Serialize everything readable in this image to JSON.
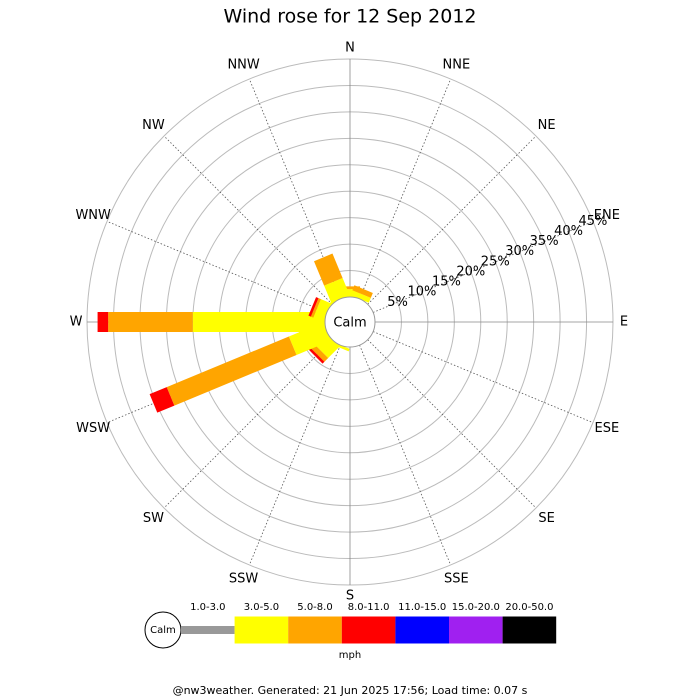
{
  "chart_data": {
    "type": "windrose",
    "title": "Wind rose for 12 Sep 2012",
    "categories": [
      "N",
      "NNE",
      "NE",
      "ENE",
      "E",
      "ESE",
      "SE",
      "SSE",
      "S",
      "SSW",
      "SW",
      "WSW",
      "W",
      "WNW",
      "NW",
      "NNW"
    ],
    "calm_label": "Calm",
    "series": [
      {
        "name": "1.0-3.0",
        "color": "#999999",
        "values": [
          0,
          0,
          0,
          0,
          0,
          0,
          0,
          0,
          0,
          0,
          0,
          0,
          0,
          0,
          0,
          0
        ]
      },
      {
        "name": "3.0-5.0",
        "color": "#ffff00",
        "values": [
          1.5,
          1,
          0,
          0,
          0,
          0,
          0,
          0,
          0,
          0.5,
          3,
          7,
          25,
          2,
          0.5,
          3.5
        ]
      },
      {
        "name": "5.0-8.0",
        "color": "#ffa500",
        "values": [
          0.5,
          1,
          0,
          0,
          0,
          0,
          0,
          0,
          0,
          0,
          1,
          25,
          16,
          0.5,
          0,
          5
        ]
      },
      {
        "name": "8.0-11.0",
        "color": "#ff0000",
        "values": [
          0,
          0,
          0,
          0,
          0,
          0,
          0,
          0,
          0,
          0,
          0.5,
          3.5,
          2,
          0.5,
          0,
          0
        ]
      },
      {
        "name": "11.0-15.0",
        "color": "#0000ff",
        "values": [
          0,
          0,
          0,
          0,
          0,
          0,
          0,
          0,
          0,
          0,
          0,
          0,
          0,
          0,
          0,
          0
        ]
      },
      {
        "name": "15.0-20.0",
        "color": "#a020f0",
        "values": [
          0,
          0,
          0,
          0,
          0,
          0,
          0,
          0,
          0,
          0,
          0,
          0,
          0,
          0,
          0,
          0
        ]
      },
      {
        "name": "20.0-50.0",
        "color": "#000000",
        "values": [
          0,
          0,
          0,
          0,
          0,
          0,
          0,
          0,
          0,
          0,
          0,
          0,
          0,
          0,
          0,
          0
        ]
      }
    ],
    "rlim": [
      0,
      45
    ],
    "rticks": [
      {
        "value": 5,
        "label": "5%"
      },
      {
        "value": 10,
        "label": "10%"
      },
      {
        "value": 15,
        "label": "15%"
      },
      {
        "value": 20,
        "label": "20%"
      },
      {
        "value": 25,
        "label": "25%"
      },
      {
        "value": 30,
        "label": "30%"
      },
      {
        "value": 35,
        "label": "35%"
      },
      {
        "value": 40,
        "label": "40%"
      },
      {
        "value": 45,
        "label": "45%"
      }
    ],
    "units": "mph",
    "footer": "@nw3weather. Generated: 21 Jun 2025 17:56; Load time: 0.07 s"
  }
}
